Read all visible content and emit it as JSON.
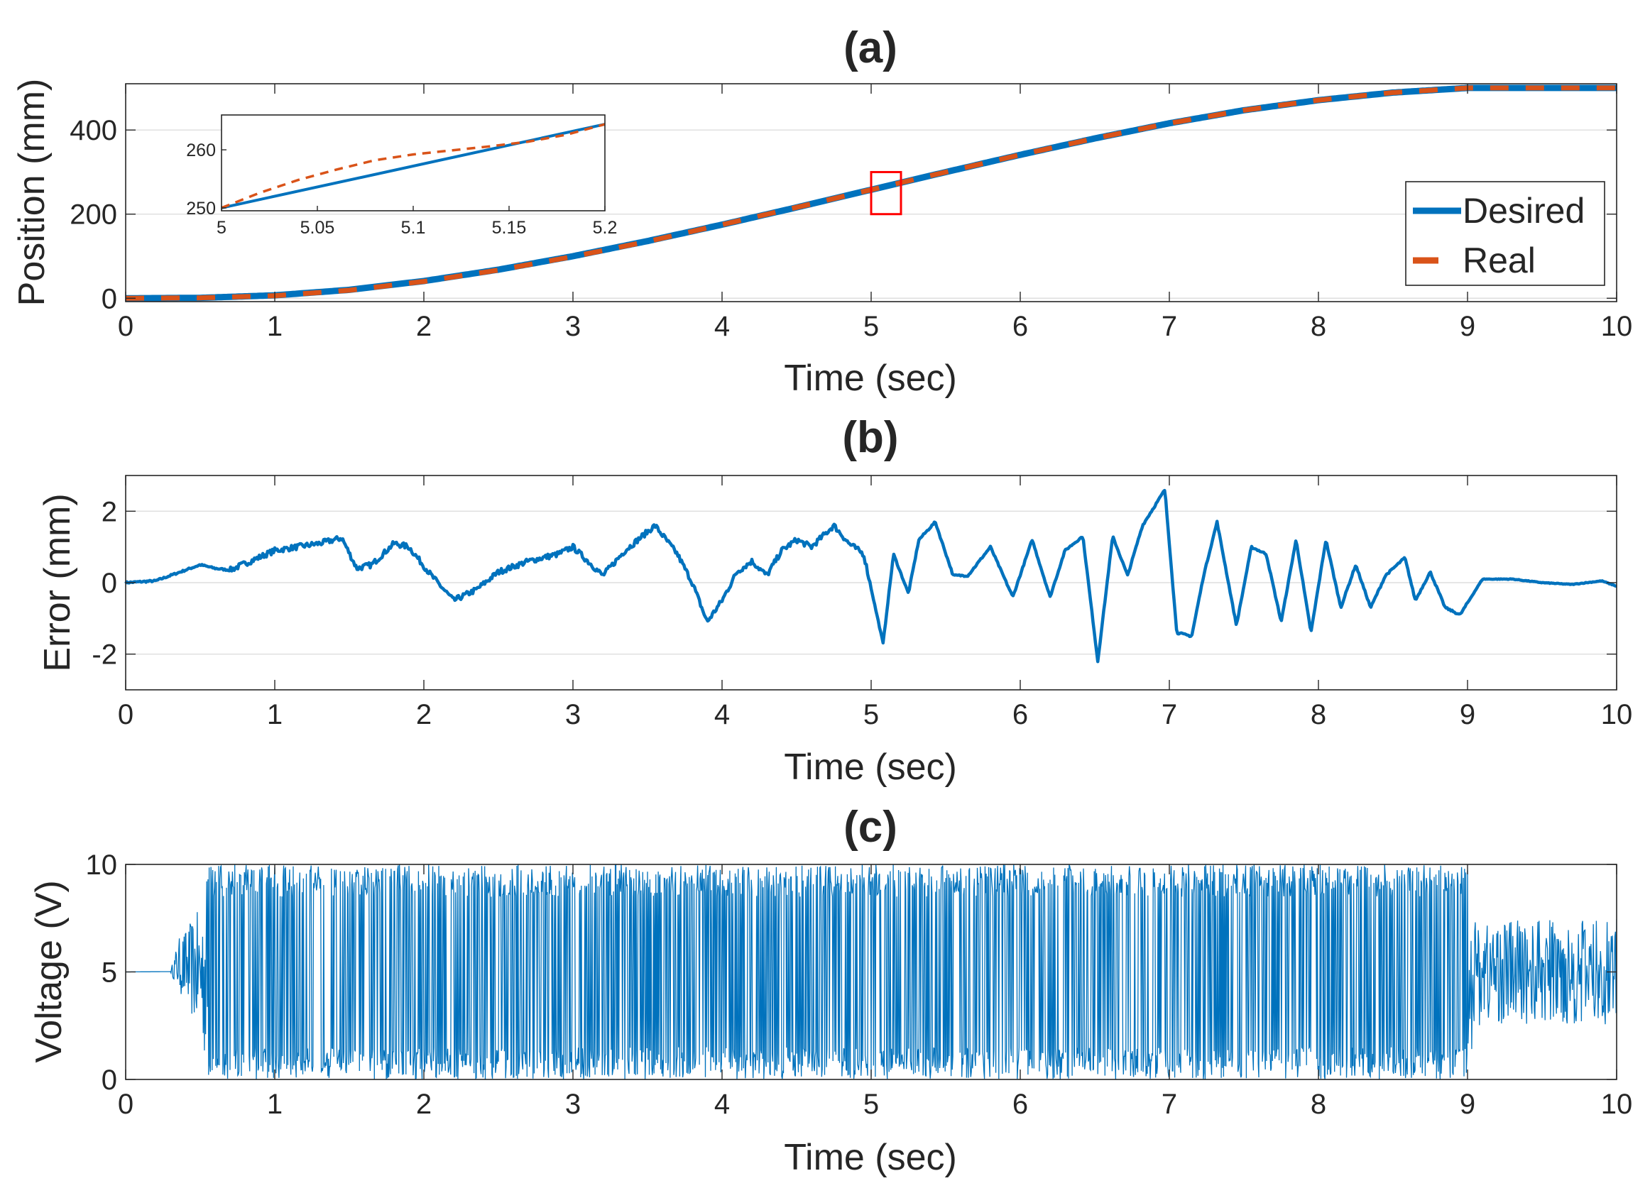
{
  "chart_data": [
    {
      "id": "a",
      "type": "line",
      "title": "(a)",
      "xlabel": "Time (sec)",
      "ylabel": "Position (mm)",
      "xlim": [
        0,
        10
      ],
      "ylim": [
        -8,
        510
      ],
      "xticks": [
        0,
        1,
        2,
        3,
        4,
        5,
        6,
        7,
        8,
        9,
        10
      ],
      "yticks": [
        0,
        200,
        400
      ],
      "grid": true,
      "legend_position": "bottom-right",
      "series": [
        {
          "name": "Desired",
          "color": "#0072BD",
          "style": "solid",
          "formula": "min-jerk 0 to 500 mm over 9 s, then hold at 500",
          "x": [
            0,
            0.5,
            1,
            1.5,
            2,
            2.5,
            3,
            3.5,
            4,
            4.5,
            5,
            5.5,
            6,
            6.5,
            7,
            7.5,
            8,
            8.5,
            9,
            9.5,
            10
          ],
          "y": [
            0,
            1,
            7,
            20,
            41,
            68,
            100,
            136,
            175,
            216,
            258,
            300,
            341,
            380,
            416,
            447,
            471,
            489,
            500,
            500,
            500
          ]
        },
        {
          "name": "Real",
          "color": "#D95319",
          "style": "dashed",
          "x": [
            0,
            0.5,
            1,
            1.5,
            2,
            2.5,
            3,
            3.5,
            4,
            4.5,
            5,
            5.5,
            6,
            6.5,
            7,
            7.5,
            8,
            8.5,
            9,
            9.5,
            10
          ],
          "y": [
            0,
            1,
            6,
            19,
            40,
            67,
            99,
            135,
            175,
            216,
            258,
            300,
            341,
            380,
            416,
            447,
            471,
            489,
            500,
            500,
            500
          ]
        }
      ],
      "highlight_box": {
        "x": [
          5,
          5.2
        ],
        "y": [
          200,
          300
        ],
        "color": "#FF0000"
      },
      "inset": {
        "xlim": [
          5,
          5.2
        ],
        "ylim": [
          249.5,
          266
        ],
        "xticks": [
          5,
          5.05,
          5.1,
          5.15,
          5.2
        ],
        "xtick_labels": [
          "5",
          "5.05",
          "5.1",
          "5.15",
          "5.2"
        ],
        "yticks": [
          250,
          260
        ],
        "series": [
          {
            "name": "Desired",
            "color": "#0072BD",
            "style": "solid",
            "x": [
              5,
              5.2
            ],
            "y": [
              250,
              264.4
            ]
          },
          {
            "name": "Real",
            "color": "#D95319",
            "style": "dashed",
            "x": [
              5,
              5.02,
              5.04,
              5.06,
              5.08,
              5.1,
              5.12,
              5.14,
              5.16,
              5.18,
              5.2
            ],
            "y": [
              250,
              252.6,
              254.8,
              256.6,
              258.2,
              259.2,
              259.9,
              260.6,
              261.4,
              262.6,
              264.4
            ]
          }
        ]
      }
    },
    {
      "id": "b",
      "type": "line",
      "title": "(b)",
      "xlabel": "Time (sec)",
      "ylabel": "Error (mm)",
      "xlim": [
        0,
        10
      ],
      "ylim": [
        -3,
        3
      ],
      "xticks": [
        0,
        1,
        2,
        3,
        4,
        5,
        6,
        7,
        8,
        9,
        10
      ],
      "yticks": [
        -2,
        0,
        2
      ],
      "grid": true,
      "series": [
        {
          "name": "Error",
          "color": "#0072BD",
          "x": [
            0,
            0.2,
            0.5,
            0.6,
            0.7,
            1.0,
            1.3,
            1.45,
            1.55,
            1.65,
            1.8,
            1.9,
            2.05,
            2.2,
            2.35,
            2.5,
            2.7,
            2.9,
            3.0,
            3.1,
            3.2,
            3.35,
            3.55,
            3.7,
            3.8,
            3.9,
            4.0,
            4.1,
            4.2,
            4.3,
            4.4,
            4.5,
            4.6,
            4.75,
            4.85,
            4.95,
            5.08,
            5.15,
            5.25,
            5.32,
            5.43,
            5.55,
            5.65,
            5.8,
            5.95,
            6.08,
            6.2,
            6.3,
            6.42,
            6.52,
            6.62,
            6.72,
            6.82,
            6.97,
            7.05,
            7.15,
            7.23,
            7.32,
            7.45,
            7.55,
            7.65,
            7.75,
            7.85,
            7.95,
            8.05,
            8.15,
            8.25,
            8.35,
            8.45,
            8.58,
            8.65,
            8.75,
            8.85,
            8.95,
            9.1,
            9.3,
            9.5,
            9.7,
            9.9,
            10.0
          ],
          "y": [
            0.0,
            0.05,
            0.5,
            0.4,
            0.35,
            0.9,
            1.1,
            1.25,
            0.4,
            0.5,
            1.1,
            1.0,
            0.2,
            -0.5,
            -0.2,
            0.3,
            0.6,
            0.8,
            1.0,
            0.6,
            0.2,
            0.9,
            1.6,
            0.8,
            0.0,
            -1.1,
            -0.5,
            0.3,
            0.6,
            0.2,
            0.9,
            1.2,
            1.0,
            1.6,
            1.1,
            0.8,
            -1.7,
            0.8,
            -0.3,
            1.2,
            1.7,
            0.2,
            0.2,
            1.0,
            -0.4,
            1.2,
            -0.4,
            0.9,
            1.3,
            -2.2,
            1.3,
            0.2,
            1.6,
            2.6,
            -1.4,
            -1.5,
            0.2,
            1.7,
            -1.2,
            1.0,
            0.8,
            -1.1,
            1.2,
            -1.4,
            1.2,
            -0.7,
            0.5,
            -0.7,
            0.2,
            0.7,
            -0.5,
            0.3,
            -0.7,
            -0.9,
            0.1,
            0.1,
            0.0,
            -0.05,
            0.05,
            -0.1
          ]
        }
      ]
    },
    {
      "id": "c",
      "type": "line",
      "title": "(c)",
      "xlabel": "Time (sec)",
      "ylabel": "Voltage (V)",
      "xlim": [
        0,
        10
      ],
      "ylim": [
        0,
        10
      ],
      "xticks": [
        0,
        1,
        2,
        3,
        4,
        5,
        6,
        7,
        8,
        9,
        10
      ],
      "yticks": [
        0,
        5,
        10
      ],
      "grid": false,
      "series": [
        {
          "name": "Voltage",
          "color": "#0072BD",
          "description": "control voltage, 5 V baseline, saturating switching 0-10 V from 0.5 s to 9 s",
          "envelope_t": [
            0,
            0.3,
            0.35,
            0.5,
            0.55,
            9.0,
            9.05,
            10.0
          ],
          "envelope_min": [
            5,
            5,
            4.2,
            2.0,
            0,
            0,
            2.5,
            2.5
          ],
          "envelope_max": [
            5,
            5,
            6.5,
            8.0,
            10,
            10,
            7.5,
            7.5
          ]
        }
      ]
    }
  ],
  "legend": {
    "entries": [
      {
        "label": "Desired",
        "color": "#0072BD"
      },
      {
        "label": "Real",
        "color": "#D95319"
      }
    ]
  },
  "colors": {
    "desired": "#0072BD",
    "real": "#D95319",
    "box": "#FF0000",
    "axis": "#262626",
    "grid": "#DEDEDE"
  }
}
